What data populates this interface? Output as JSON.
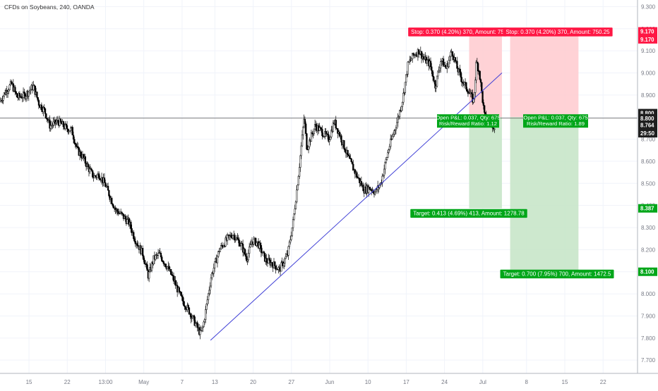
{
  "chart_data": {
    "type": "candlestick",
    "title": "CFDs on Soybeans, 240, OANDA",
    "ylim": [
      7.64,
      9.33
    ],
    "y_ticks": [
      "9.300",
      "9.200",
      "9.100",
      "9.000",
      "8.900",
      "8.800",
      "8.700",
      "8.600",
      "8.500",
      "8.400",
      "8.300",
      "8.200",
      "8.100",
      "8.000",
      "7.900",
      "7.800",
      "7.700"
    ],
    "x_ticks": [
      "15",
      "22",
      "13:00",
      "May",
      "7",
      "13",
      "20",
      "27",
      "Jun",
      "10",
      "17",
      "24",
      "Jul",
      "8",
      "15",
      "22"
    ],
    "x_tick_days": [
      0,
      7,
      14,
      21,
      28,
      34,
      41,
      48,
      55,
      62,
      69,
      76,
      83,
      91,
      98,
      105
    ],
    "x_range_days": [
      -5.3,
      111.3
    ],
    "series": [
      {
        "anchors": [
          [
            -5.2,
            8.87
          ],
          [
            -4.0,
            8.92
          ],
          [
            -3.0,
            8.95
          ],
          [
            -2.0,
            8.89
          ],
          [
            -0.5,
            8.9
          ],
          [
            1.0,
            8.94
          ],
          [
            2.0,
            8.86
          ],
          [
            3.0,
            8.83
          ],
          [
            4.0,
            8.76
          ],
          [
            5.5,
            8.78
          ],
          [
            7.0,
            8.75
          ],
          [
            8.0,
            8.74
          ],
          [
            9.0,
            8.65
          ],
          [
            10.0,
            8.62
          ],
          [
            11.0,
            8.57
          ],
          [
            12.0,
            8.53
          ],
          [
            13.0,
            8.54
          ],
          [
            14.0,
            8.5
          ],
          [
            15.0,
            8.44
          ],
          [
            16.0,
            8.38
          ],
          [
            17.0,
            8.36
          ],
          [
            18.5,
            8.32
          ],
          [
            19.5,
            8.25
          ],
          [
            21.0,
            8.18
          ],
          [
            22.0,
            8.08
          ],
          [
            23.0,
            8.16
          ],
          [
            24.0,
            8.18
          ],
          [
            25.5,
            8.12
          ],
          [
            26.5,
            8.07
          ],
          [
            28.0,
            7.98
          ],
          [
            29.5,
            7.92
          ],
          [
            30.5,
            7.87
          ],
          [
            31.5,
            7.82
          ],
          [
            32.0,
            7.85
          ],
          [
            33.5,
            8.08
          ],
          [
            35.0,
            8.2
          ],
          [
            36.5,
            8.25
          ],
          [
            37.5,
            8.27
          ],
          [
            39.0,
            8.22
          ],
          [
            40.0,
            8.16
          ],
          [
            41.0,
            8.24
          ],
          [
            42.0,
            8.23
          ],
          [
            43.5,
            8.15
          ],
          [
            44.5,
            8.14
          ],
          [
            46.0,
            8.11
          ],
          [
            47.5,
            8.18
          ],
          [
            48.5,
            8.33
          ],
          [
            49.5,
            8.55
          ],
          [
            50.5,
            8.8
          ],
          [
            51.0,
            8.66
          ],
          [
            52.5,
            8.76
          ],
          [
            53.5,
            8.74
          ],
          [
            55.0,
            8.7
          ],
          [
            56.0,
            8.78
          ],
          [
            57.0,
            8.72
          ],
          [
            58.5,
            8.62
          ],
          [
            60.0,
            8.54
          ],
          [
            61.5,
            8.47
          ],
          [
            62.5,
            8.48
          ],
          [
            63.5,
            8.46
          ],
          [
            64.5,
            8.5
          ],
          [
            66.0,
            8.66
          ],
          [
            67.5,
            8.78
          ],
          [
            68.5,
            8.88
          ],
          [
            69.5,
            9.04
          ],
          [
            70.5,
            9.08
          ],
          [
            71.5,
            9.1
          ],
          [
            72.5,
            9.06
          ],
          [
            73.5,
            9.04
          ],
          [
            74.5,
            8.94
          ],
          [
            75.5,
            9.06
          ],
          [
            76.5,
            9.02
          ],
          [
            77.5,
            9.1
          ],
          [
            78.5,
            9.02
          ],
          [
            79.5,
            8.96
          ],
          [
            80.5,
            8.92
          ],
          [
            81.5,
            8.87
          ],
          [
            82.0,
            9.05
          ],
          [
            82.5,
            9.01
          ],
          [
            83.5,
            8.8
          ],
          [
            84.5,
            8.78
          ],
          [
            85.2,
            8.76
          ]
        ]
      }
    ],
    "current_price": "8.764",
    "countdown": "29:50",
    "price_badges": {
      "stop": "9.170",
      "entry": "8.800",
      "target_1": "8.387",
      "target_2": "8.100",
      "crosshair": "8.800"
    },
    "trendline": {
      "start": [
        33.2,
        7.79
      ],
      "end": [
        86.5,
        9.0
      ]
    },
    "horizontal_line": 8.795,
    "positions": [
      {
        "entry": 8.8,
        "stop": 9.17,
        "target": 8.387,
        "x_start": 80.5,
        "x_end": 86.5,
        "stop_label": "Stop: 0.370 (4.20%) 370, Amount: 75",
        "pnl_label": "Open P&L: 0.037, Qty: 675",
        "rr_label": "Risk/Reward Ratio: 1.12",
        "target_label": "Target: 0.413 (4.69%) 413, Amount: 1278.78"
      },
      {
        "entry": 8.8,
        "stop": 9.17,
        "target": 8.1,
        "x_start": 88.0,
        "x_end": 100.5,
        "stop_label": "Stop: 0.370 (4.20%) 370, Amount: 750.25",
        "pnl_label": "Open P&L: 0.037, Qty: 675",
        "rr_label": "Risk/Reward Ratio: 1.89",
        "target_label": "Target: 0.700 (7.95%) 700, Amount: 1472.5"
      }
    ]
  }
}
